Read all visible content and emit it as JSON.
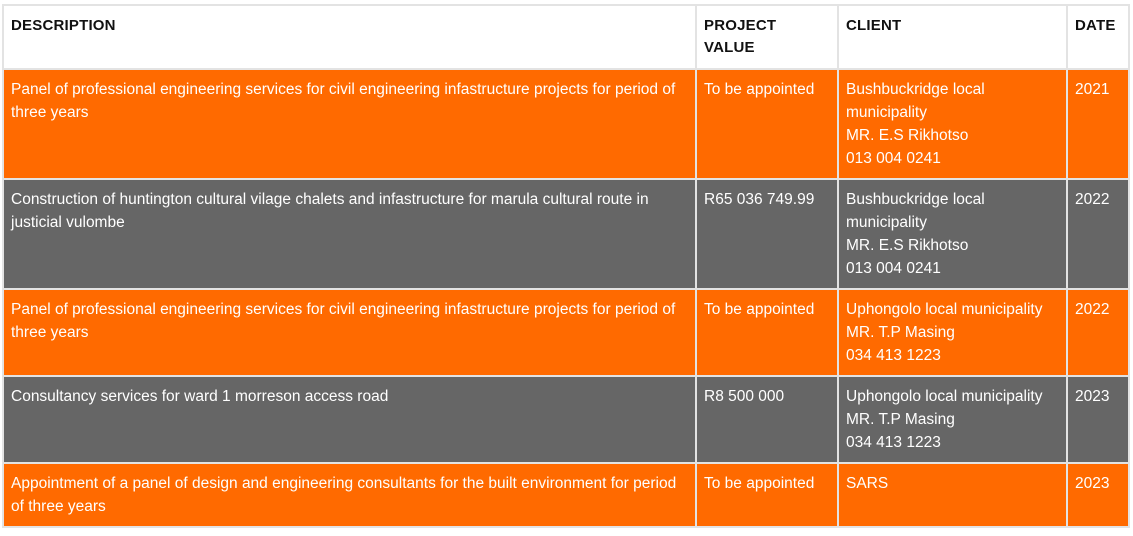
{
  "table": {
    "headers": {
      "description": "DESCRIPTION",
      "project_value_line1": "PROJECT",
      "project_value_line2": "VALUE",
      "client": "CLIENT",
      "date": "DATE"
    },
    "rows": [
      {
        "style": "orange",
        "description": "Panel of professional engineering services for civil engineering infastructure projects for period of three years",
        "project_value": "To be appointed",
        "client_lines": [
          "Bushbuckridge local",
          "municipality",
          "MR. E.S Rikhotso",
          "013 004 0241"
        ],
        "date": "2021"
      },
      {
        "style": "gray",
        "description": "Construction of huntington cultural vilage chalets and infastructure for marula cultural route in justicial vulombe",
        "project_value": "R65 036 749.99",
        "client_lines": [
          "Bushbuckridge local",
          "municipality",
          "MR. E.S Rikhotso",
          "013 004 0241"
        ],
        "date": "2022"
      },
      {
        "style": "orange",
        "description": "Panel of professional engineering services for civil engineering infastructure projects for period of three years",
        "project_value": "To be appointed",
        "client_lines": [
          "Uphongolo local municipality",
          "MR. T.P Masing",
          "034 413 1223"
        ],
        "date": "2022"
      },
      {
        "style": "gray",
        "description": "Consultancy services for ward 1 morreson access road",
        "project_value": "R8 500 000",
        "client_lines": [
          "Uphongolo local municipality",
          "MR. T.P Masing",
          "034 413 1223"
        ],
        "date": "2023"
      },
      {
        "style": "orange",
        "description": "Appointment of a panel of design and engineering consultants for the built environment for period of three years",
        "project_value": "To be appointed",
        "client_lines": [
          "SARS"
        ],
        "date": "2023"
      }
    ]
  },
  "colors": {
    "orange_row": "#ff6a00",
    "gray_row": "#666666",
    "header_bg": "#ffffff",
    "cell_text": "#ffffff",
    "header_text": "#111111",
    "border": "#e3e3e3"
  }
}
